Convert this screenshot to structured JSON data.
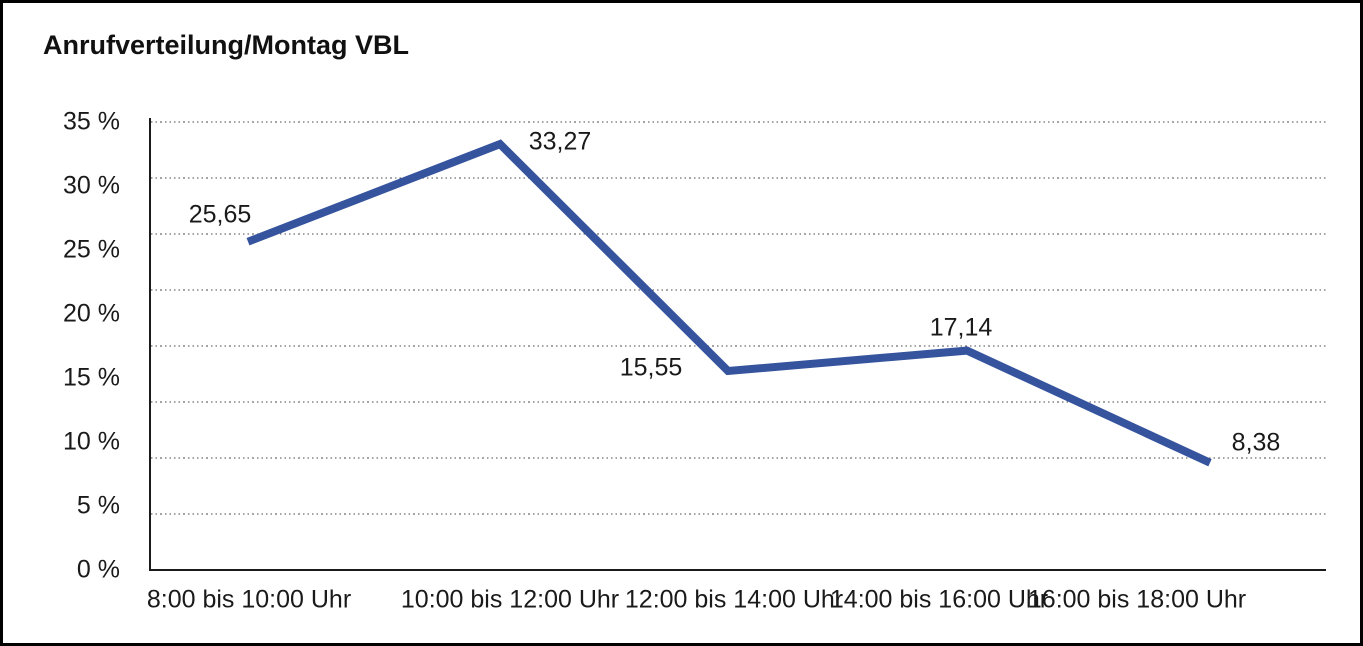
{
  "title": "Anrufverteilung/Montag VBL",
  "chart_data": {
    "type": "line",
    "title": "Anrufverteilung/Montag VBL",
    "categories": [
      "8:00 bis 10:00 Uhr",
      "10:00 bis 12:00 Uhr",
      "12:00 bis 14:00 Uhr",
      "14:00 bis 16:00 Uhr",
      "16:00 bis 18:00 Uhr"
    ],
    "values": [
      25.65,
      33.27,
      15.55,
      17.14,
      8.38
    ],
    "point_labels": [
      "25,65",
      "33,27",
      "15,55",
      "17,14",
      "8,38"
    ],
    "y_ticks": [
      "35 %",
      "30 %",
      "25 %",
      "20 %",
      "15 %",
      "10 %",
      "5 %",
      "0 %"
    ],
    "ylim": [
      0,
      35
    ],
    "xlabel": "",
    "ylabel": "",
    "grid": true,
    "legend": "none",
    "line_color": "#36549E",
    "axis_color": "#1a1a1a",
    "grid_color": "#4a4a4a"
  }
}
